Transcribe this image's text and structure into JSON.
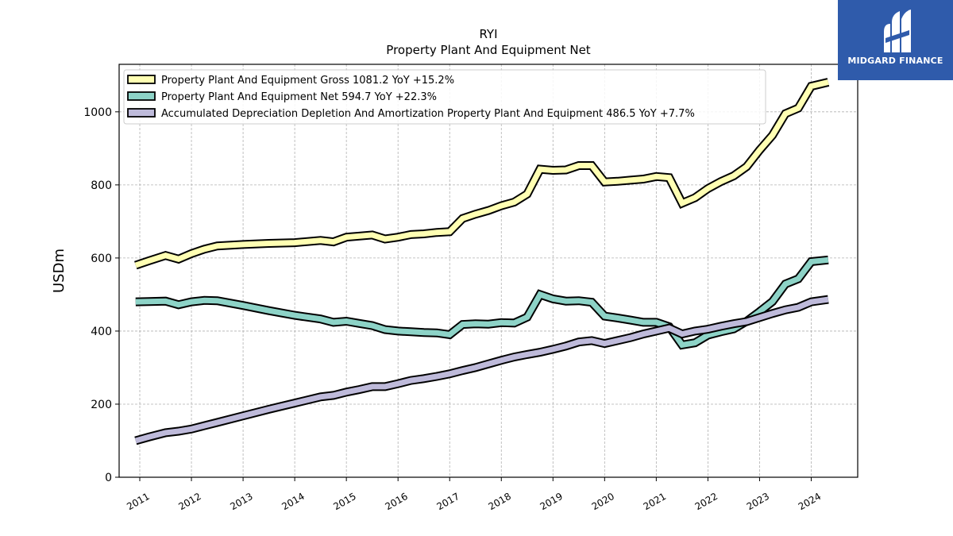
{
  "chart_data": {
    "type": "line",
    "title": "RYI",
    "subtitle": "Property Plant And Equipment Net",
    "xlabel": "",
    "ylabel": "USDm",
    "xlim": [
      2010.6,
      2024.9
    ],
    "ylim": [
      0,
      1130
    ],
    "x_ticks": [
      "2011",
      "2012",
      "2013",
      "2014",
      "2015",
      "2016",
      "2017",
      "2018",
      "2019",
      "2020",
      "2021",
      "2022",
      "2023",
      "2024"
    ],
    "y_ticks": [
      0,
      200,
      400,
      600,
      800,
      1000
    ],
    "grid": true,
    "legend_position": "top-left",
    "series": [
      {
        "name": "Property Plant And Equipment Gross",
        "legend": "Property Plant And Equipment Gross  1081.2 YoY +15.2%",
        "color": "#ffffb3",
        "x": [
          2010.92,
          2011.17,
          2011.5,
          2011.75,
          2012.0,
          2012.25,
          2012.5,
          2013.0,
          2013.5,
          2014.0,
          2014.5,
          2014.75,
          2015.0,
          2015.25,
          2015.5,
          2015.75,
          2016.0,
          2016.25,
          2016.5,
          2016.75,
          2017.0,
          2017.25,
          2017.5,
          2017.75,
          2018.0,
          2018.25,
          2018.5,
          2018.75,
          2019.0,
          2019.25,
          2019.5,
          2019.75,
          2020.0,
          2020.25,
          2020.5,
          2020.75,
          2021.0,
          2021.25,
          2021.5,
          2021.75,
          2022.0,
          2022.25,
          2022.5,
          2022.75,
          2023.0,
          2023.25,
          2023.5,
          2023.75,
          2024.0,
          2024.33
        ],
        "values": [
          580,
          592,
          607,
          597,
          612,
          624,
          633,
          637,
          640,
          642,
          648,
          644,
          657,
          660,
          663,
          652,
          657,
          664,
          666,
          670,
          672,
          708,
          720,
          730,
          743,
          753,
          775,
          843,
          840,
          841,
          853,
          853,
          808,
          810,
          813,
          816,
          823,
          820,
          750,
          765,
          790,
          809,
          825,
          850,
          895,
          936,
          995,
          1010,
          1070,
          1081.2
        ]
      },
      {
        "name": "Property Plant And Equipment Net",
        "legend": "Property Plant And Equipment Net  594.7 YoY +22.3%",
        "color": "#8dd3c7",
        "x": [
          2010.92,
          2011.17,
          2011.5,
          2011.75,
          2012.0,
          2012.25,
          2012.5,
          2013.0,
          2013.5,
          2014.0,
          2014.5,
          2014.75,
          2015.0,
          2015.25,
          2015.5,
          2015.75,
          2016.0,
          2016.25,
          2016.5,
          2016.75,
          2017.0,
          2017.25,
          2017.5,
          2017.75,
          2018.0,
          2018.25,
          2018.5,
          2018.75,
          2019.0,
          2019.25,
          2019.5,
          2019.75,
          2020.0,
          2020.25,
          2020.5,
          2020.75,
          2021.0,
          2021.25,
          2021.5,
          2021.75,
          2022.0,
          2022.25,
          2022.5,
          2022.75,
          2023.0,
          2023.25,
          2023.5,
          2023.75,
          2024.0,
          2024.33
        ],
        "values": [
          480,
          481,
          482,
          472,
          480,
          484,
          483,
          470,
          456,
          443,
          433,
          424,
          427,
          421,
          415,
          404,
          400,
          398,
          396,
          395,
          390,
          418,
          420,
          419,
          423,
          422,
          438,
          500,
          488,
          482,
          483,
          479,
          441,
          436,
          430,
          424,
          424,
          412,
          362,
          368,
          389,
          398,
          406,
          427,
          453,
          481,
          529,
          543,
          590,
          594.7
        ]
      },
      {
        "name": "Accumulated Depreciation Depletion And Amortization Property Plant And Equipment",
        "legend": "Accumulated Depreciation Depletion And Amortization Property Plant And Equipment  486.5 YoY +7.7%",
        "color": "#bebada",
        "x": [
          2010.92,
          2011.17,
          2011.5,
          2011.75,
          2012.0,
          2012.25,
          2012.5,
          2013.0,
          2013.5,
          2014.0,
          2014.5,
          2014.75,
          2015.0,
          2015.25,
          2015.5,
          2015.75,
          2016.0,
          2016.25,
          2016.5,
          2016.75,
          2017.0,
          2017.25,
          2017.5,
          2017.75,
          2018.0,
          2018.25,
          2018.5,
          2018.75,
          2019.0,
          2019.25,
          2019.5,
          2019.75,
          2020.0,
          2020.25,
          2020.5,
          2020.75,
          2021.0,
          2021.25,
          2021.5,
          2021.75,
          2022.0,
          2022.25,
          2022.5,
          2022.75,
          2023.0,
          2023.25,
          2023.5,
          2023.75,
          2024.0,
          2024.33
        ],
        "values": [
          100,
          110,
          122,
          126,
          132,
          141,
          150,
          168,
          186,
          203,
          220,
          224,
          233,
          240,
          248,
          248,
          256,
          265,
          270,
          276,
          283,
          292,
          300,
          310,
          320,
          329,
          336,
          342,
          350,
          359,
          370,
          374,
          366,
          374,
          382,
          392,
          400,
          408,
          392,
          400,
          405,
          413,
          420,
          426,
          437,
          448,
          458,
          465,
          480,
          486.5
        ]
      }
    ]
  },
  "logo": {
    "text": "MIDGARD FINANCE"
  }
}
